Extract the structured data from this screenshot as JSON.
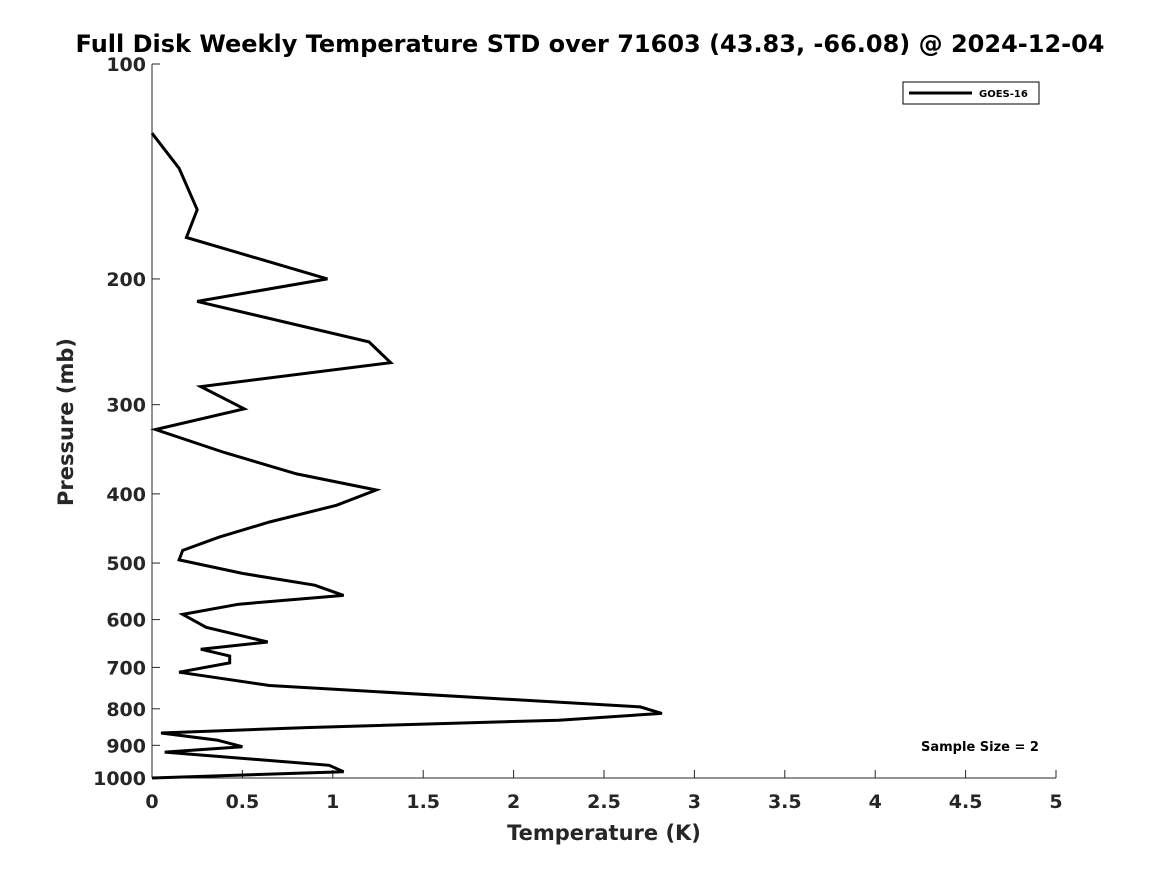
{
  "chart_data": {
    "type": "line",
    "title": "Full Disk Weekly Temperature STD over 71603 (43.83, -66.08) @ 2024-12-04",
    "xlabel": "Temperature (K)",
    "ylabel": "Pressure (mb)",
    "xlim": [
      0,
      5
    ],
    "ylim": [
      100,
      1000
    ],
    "yscale": "log",
    "y_inverted": true,
    "xticks": [
      "0",
      "0.5",
      "1",
      "1.5",
      "2",
      "2.5",
      "3",
      "3.5",
      "4",
      "4.5",
      "5"
    ],
    "yticks": [
      "100",
      "200",
      "300",
      "400",
      "500",
      "600",
      "700",
      "800",
      "900",
      "1000"
    ],
    "grid": false,
    "legend_position": "top-right",
    "series": [
      {
        "name": "GOES-16",
        "color": "#000000",
        "x": [
          0.0,
          0.15,
          0.25,
          0.19,
          0.97,
          0.25,
          1.2,
          1.32,
          0.27,
          0.51,
          0.02,
          0.4,
          0.8,
          1.24,
          1.02,
          0.65,
          0.37,
          0.17,
          0.15,
          0.5,
          0.9,
          1.06,
          0.48,
          0.17,
          0.3,
          0.64,
          0.27,
          0.43,
          0.43,
          0.15,
          0.65,
          2.7,
          2.82,
          2.25,
          0.85,
          0.05,
          0.36,
          0.5,
          0.07,
          0.98,
          1.06,
          0.0
        ],
        "y": [
          125,
          140,
          160,
          175,
          200,
          215,
          245,
          262,
          283,
          304,
          325,
          350,
          375,
          395,
          415,
          438,
          460,
          480,
          495,
          517,
          537,
          555,
          571,
          590,
          615,
          645,
          660,
          675,
          690,
          711,
          742,
          795,
          812,
          830,
          850,
          865,
          885,
          904,
          920,
          960,
          980,
          1000
        ]
      }
    ],
    "annotations": [
      "Sample Size = 2"
    ]
  }
}
